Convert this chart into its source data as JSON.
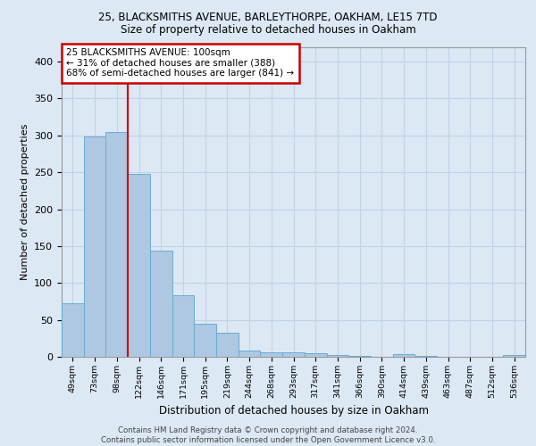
{
  "title_line1": "25, BLACKSMITHS AVENUE, BARLEYTHORPE, OAKHAM, LE15 7TD",
  "title_line2": "Size of property relative to detached houses in Oakham",
  "xlabel": "Distribution of detached houses by size in Oakham",
  "ylabel": "Number of detached properties",
  "bar_labels": [
    "49sqm",
    "73sqm",
    "98sqm",
    "122sqm",
    "146sqm",
    "171sqm",
    "195sqm",
    "219sqm",
    "244sqm",
    "268sqm",
    "293sqm",
    "317sqm",
    "341sqm",
    "366sqm",
    "390sqm",
    "414sqm",
    "439sqm",
    "463sqm",
    "487sqm",
    "512sqm",
    "536sqm"
  ],
  "bar_values": [
    72,
    299,
    305,
    248,
    144,
    83,
    45,
    33,
    9,
    6,
    6,
    5,
    3,
    1,
    0,
    4,
    1,
    0,
    0,
    0,
    2
  ],
  "bar_color": "#adc8e0",
  "bar_edge_color": "#6aaad4",
  "property_line_index": 2,
  "annotation_text_line1": "25 BLACKSMITHS AVENUE: 100sqm",
  "annotation_text_line2": "← 31% of detached houses are smaller (388)",
  "annotation_text_line3": "68% of semi-detached houses are larger (841) →",
  "annotation_box_color": "#ffffff",
  "annotation_box_edge": "#cc0000",
  "vline_color": "#cc0000",
  "grid_color": "#c0d4e8",
  "background_color": "#dce8f4",
  "figure_background": "#dce8f4",
  "footer_text": "Contains HM Land Registry data © Crown copyright and database right 2024.\nContains public sector information licensed under the Open Government Licence v3.0.",
  "ylim_max": 420,
  "yticks": [
    0,
    50,
    100,
    150,
    200,
    250,
    300,
    350,
    400
  ]
}
